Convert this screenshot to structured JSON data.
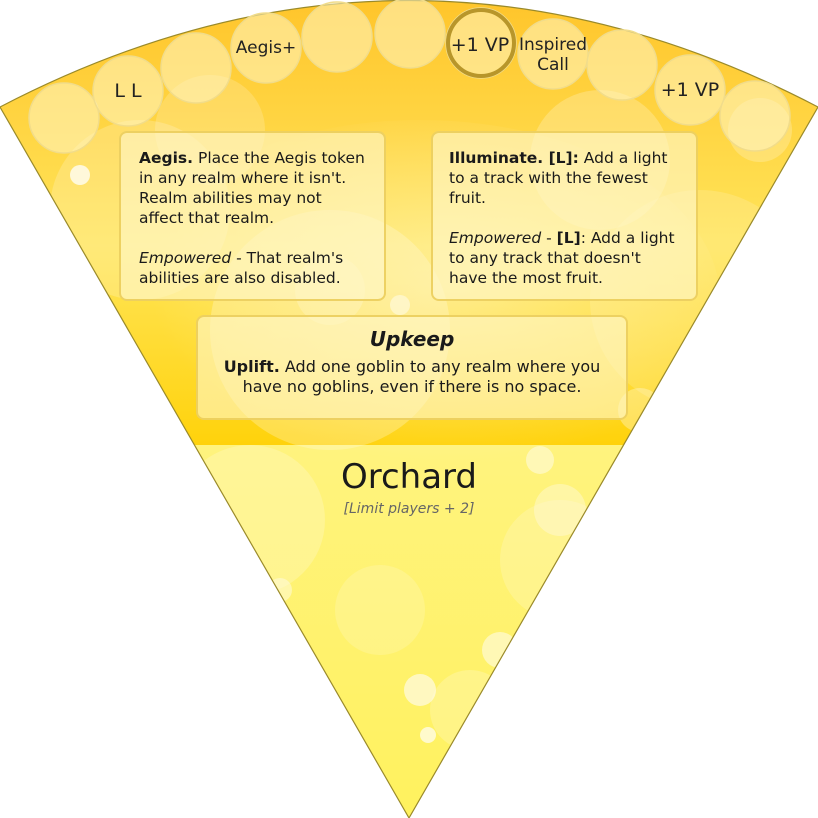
{
  "track": {
    "slots": [
      {
        "label": ""
      },
      {
        "label": "L L"
      },
      {
        "label": ""
      },
      {
        "label": "Aegis+"
      },
      {
        "label": ""
      },
      {
        "label": ""
      },
      {
        "label": "+1 VP"
      },
      {
        "label": "Inspired\nCall"
      },
      {
        "label": ""
      },
      {
        "label": "+1 VP"
      },
      {
        "label": ""
      }
    ],
    "current_slot_index": 6
  },
  "abilities": {
    "aegis": {
      "name": "Aegis.",
      "text": "Place the Aegis token in any realm where it isn't. Realm abilities may not affect that realm.",
      "empowered_label": "Empowered",
      "empowered_text": "- That realm's abilities are also disabled."
    },
    "illuminate": {
      "name": "Illuminate. [L]:",
      "text": "Add a light to a track with the fewest fruit.",
      "empowered_label": "Empowered",
      "empowered_sep": "-",
      "empowered_cost": "[L]",
      "empowered_text": ": Add a light to any track that doesn't have the most fruit."
    }
  },
  "upkeep": {
    "title": "Upkeep",
    "name": "Uplift.",
    "text": "Add one goblin to any realm where you have no goblins, even if there is no space."
  },
  "realm": {
    "name": "Orchard",
    "limit": "[Limit players + 2]"
  },
  "colors": {
    "card_fill": "#fff27a",
    "card_upper": "#ffd21a",
    "box_border": "#ebcd5a",
    "highlight_ring": "#b8962a"
  }
}
